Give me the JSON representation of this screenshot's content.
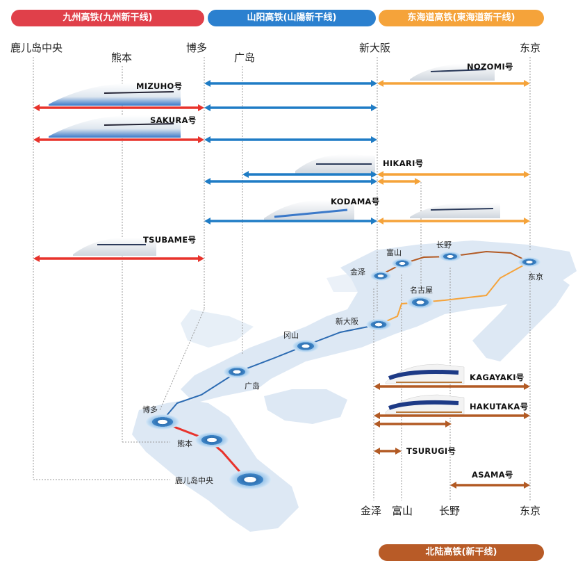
{
  "banners": {
    "kyushu": "九州高铁(九州新干线)",
    "sanyo": "山阳高铁(山陽新干线)",
    "tokaido": "东海道高铁(東海道新干线)",
    "hokuriku": "北陆高铁(新干线)"
  },
  "top_stations": {
    "kagoshima": "鹿儿岛中央",
    "kumamoto": "熊本",
    "hakata": "博多",
    "hiroshima": "广岛",
    "shin_osaka": "新大阪",
    "tokyo": "东京"
  },
  "bottom_stations": {
    "kanazawa": "金泽",
    "toyama": "富山",
    "nagano": "长野",
    "tokyo": "东京"
  },
  "trains": {
    "nozomi": "NOZOMI号",
    "mizuho": "MIZUHO号",
    "sakura": "SAKURA号",
    "hikari": "HIKARI号",
    "kodama": "KODAMA号",
    "tsubame": "TSUBAME号",
    "kagayaki": "KAGAYAKI号",
    "hakutaka": "HAKUTAKA号",
    "tsurugi": "TSURUGI号",
    "asama": "ASAMA号"
  },
  "map_labels": {
    "toyama": "富山",
    "nagano": "长野",
    "kanazawa": "金泽",
    "tokyo": "东京",
    "nagoya": "名古屋",
    "shin_osaka": "新大阪",
    "okayama": "冈山",
    "hiroshima": "广岛",
    "hakata": "博多",
    "kumamoto": "熊本",
    "kagoshima": "鹿儿岛中央"
  },
  "colors": {
    "kyushu_red": "#e8332c",
    "sanyo_blue": "#1f7cc5",
    "tokaido_orange": "#f5a33a",
    "hokuriku_brown": "#b25a24",
    "map_land": "#dde8f4"
  }
}
